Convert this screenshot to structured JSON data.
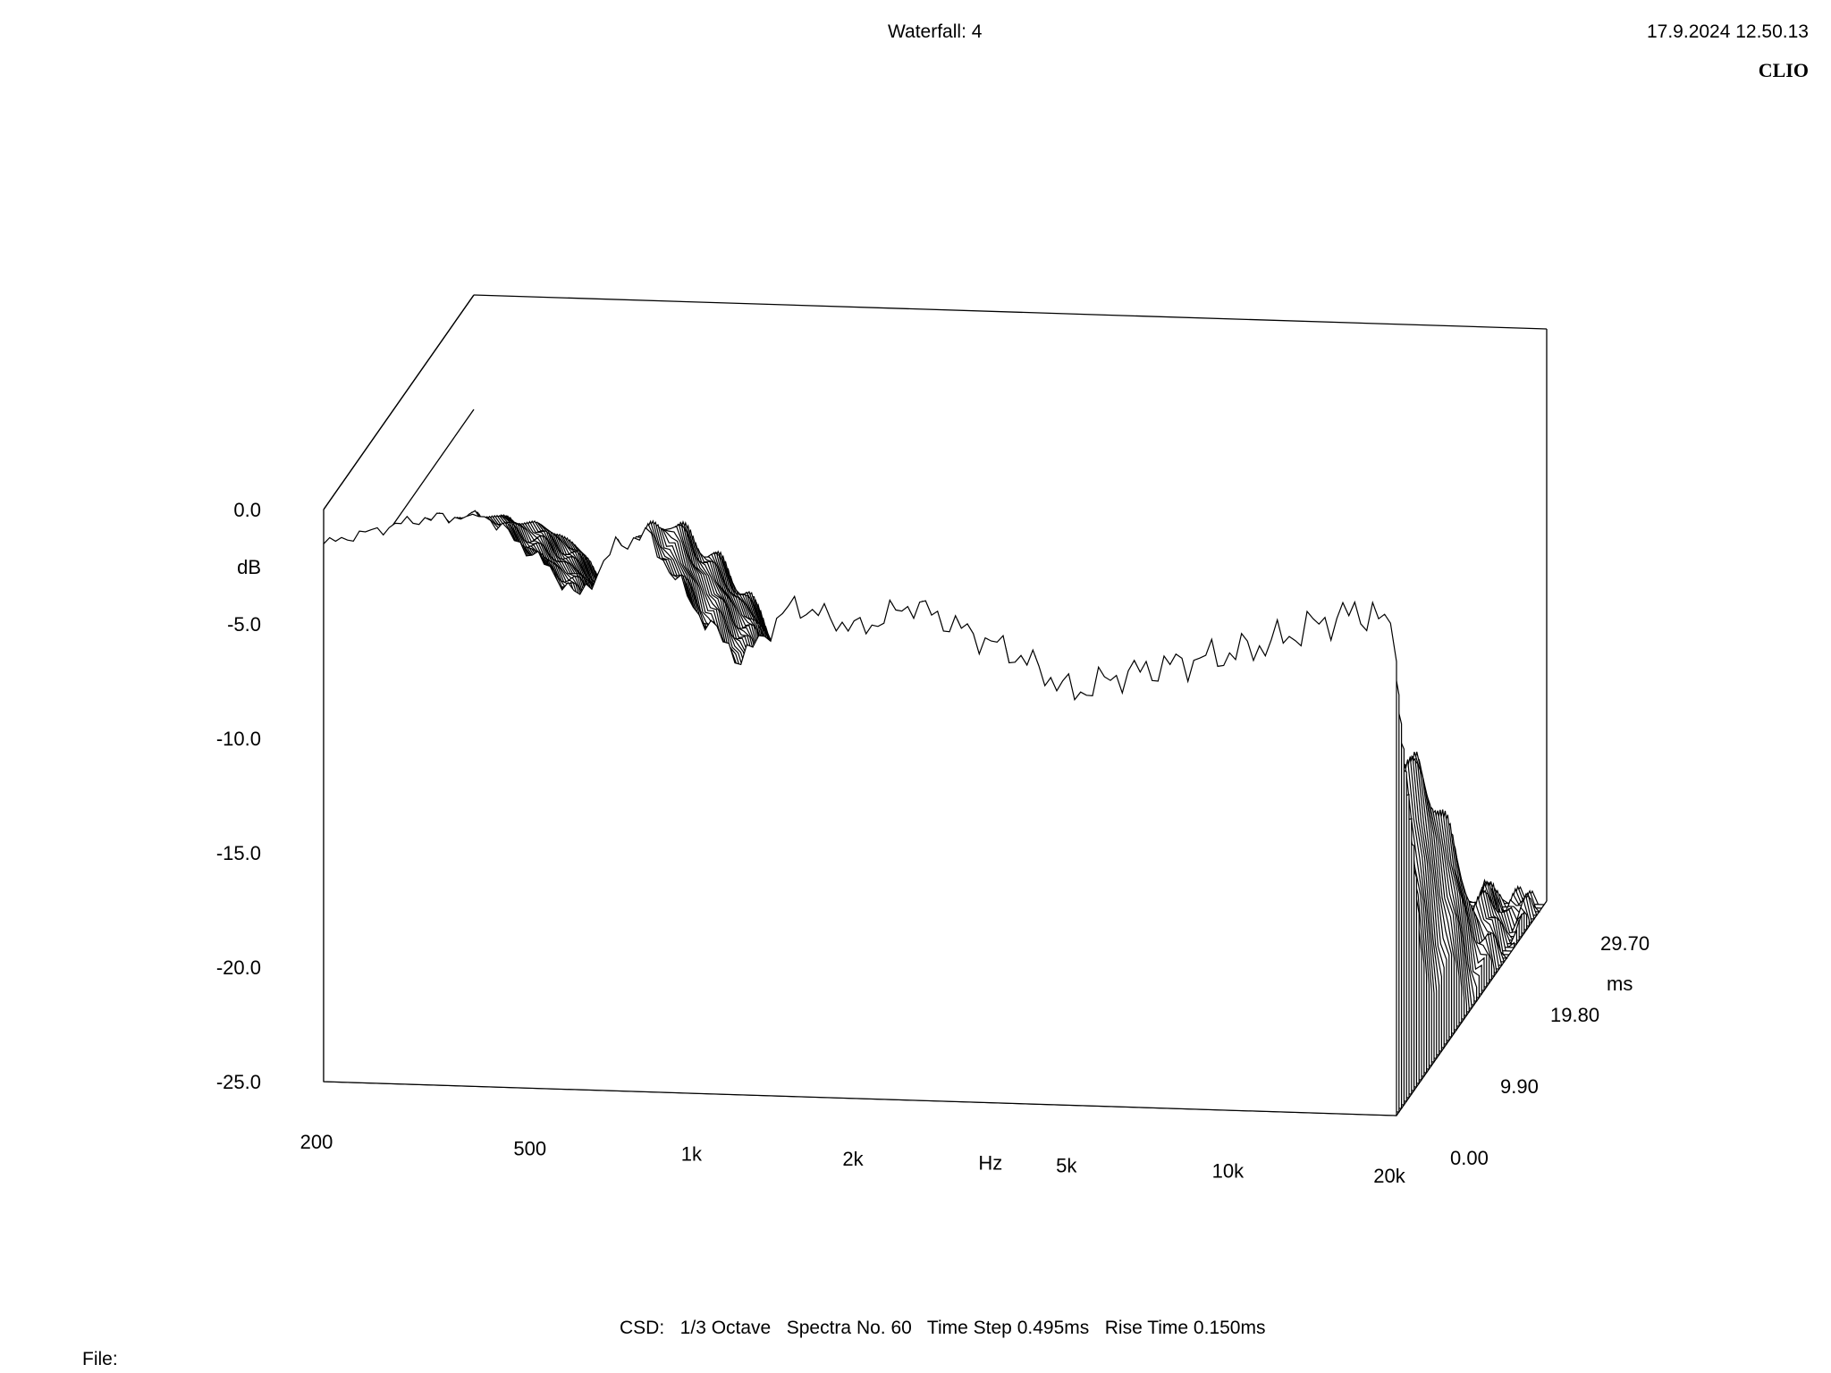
{
  "header": {
    "title": "Waterfall: 4",
    "datetime": "17.9.2024 12.50.13",
    "brand": "CLIO"
  },
  "footer": {
    "settings": "CSD:   1/3 Octave   Spectra No. 60   Time Step 0.495ms   Rise Time 0.150ms",
    "file_label": "File:"
  },
  "chart_data": {
    "type": "waterfall",
    "title": "Waterfall: 4",
    "method": "CSD",
    "smoothing": "1/3 Octave",
    "spectra_count": 60,
    "time_step_ms": 0.495,
    "rise_time_ms": 0.15,
    "ylabel": "dB",
    "xlabel": "Hz",
    "zlabel": "ms",
    "ylim": [
      -25,
      0
    ],
    "xlim": [
      200,
      20000
    ],
    "x_scale": "log",
    "zlim": [
      0,
      29.7
    ],
    "y_ticks": [
      "0.0",
      "-5.0",
      "-10.0",
      "-15.0",
      "-20.0",
      "-25.0"
    ],
    "x_ticks": [
      "200",
      "500",
      "1k",
      "2k",
      "5k",
      "10k",
      "20k"
    ],
    "z_ticks": [
      "0.00",
      "9.90",
      "19.80",
      "29.70"
    ],
    "series": [
      {
        "time_ms": 0.0,
        "freq": [
          200,
          300,
          400,
          500,
          600,
          700,
          800,
          1000,
          1200,
          1500,
          2000,
          2500,
          3000,
          4000,
          5000,
          6000,
          8000,
          10000,
          12000,
          15000,
          18000,
          20000
        ],
        "db": [
          -1.5,
          -0.3,
          0.0,
          -1.8,
          -3.5,
          -1.2,
          -0.6,
          -4.0,
          -6.0,
          -3.5,
          -4.5,
          -3.3,
          -4.2,
          -5.5,
          -7.0,
          -6.2,
          -5.5,
          -5.0,
          -4.4,
          -3.4,
          -3.0,
          -4.2
        ]
      },
      {
        "time_ms": 4.95,
        "freq": [
          200,
          300,
          400,
          500,
          600,
          700,
          800,
          1000,
          1200,
          1500,
          2000,
          2500,
          3000,
          4000,
          5000,
          6000,
          8000,
          10000,
          12000,
          15000,
          18000,
          20000
        ],
        "db": [
          -6.5,
          -2.5,
          -1.8,
          -4.5,
          -8.5,
          -3.5,
          -1.5,
          -8.0,
          -9.5,
          -9.5,
          -8.0,
          -7.0,
          -8.5,
          -10.0,
          -13.0,
          -14.0,
          -12.5,
          -12.5,
          -13.5,
          -13.0,
          -11.0,
          -20.0
        ]
      },
      {
        "time_ms": 9.9,
        "freq": [
          200,
          300,
          400,
          500,
          600,
          700,
          800,
          1000,
          1200,
          1500,
          2000,
          2500,
          3000,
          4000,
          5000,
          6000,
          8000,
          10000,
          12000,
          15000,
          18000,
          20000
        ],
        "db": [
          -9.0,
          -4.5,
          -3.5,
          -6.5,
          -10.5,
          -5.5,
          -4.0,
          -9.5,
          -12.0,
          -11.5,
          -10.5,
          -9.5,
          -11.0,
          -13.0,
          -16.0,
          -16.5,
          -15.5,
          -15.0,
          -15.5,
          -15.0,
          -13.0,
          -22.0
        ]
      },
      {
        "time_ms": 14.85,
        "freq": [
          200,
          300,
          400,
          500,
          600,
          700,
          800,
          1000,
          1200,
          1500,
          2000,
          2500,
          3000,
          4000,
          5000,
          6000,
          8000,
          10000,
          12000,
          15000,
          18000,
          20000
        ],
        "db": [
          -12.0,
          -7.0,
          -5.5,
          -9.0,
          -13.0,
          -7.5,
          -6.5,
          -11.5,
          -14.5,
          -14.5,
          -13.0,
          -13.5,
          -15.0,
          -16.5,
          -19.0,
          -19.5,
          -19.0,
          -18.5,
          -19.0,
          -18.5,
          -17.0,
          -24.0
        ]
      },
      {
        "time_ms": 19.8,
        "freq": [
          200,
          300,
          400,
          500,
          600,
          700,
          800,
          1000,
          1200,
          1500,
          2000,
          2500,
          3000,
          4000,
          5000,
          6000,
          8000,
          10000,
          12000,
          15000,
          18000,
          20000
        ],
        "db": [
          -15.0,
          -9.5,
          -8.0,
          -11.5,
          -15.5,
          -10.0,
          -9.5,
          -14.0,
          -17.5,
          -17.0,
          -16.0,
          -17.0,
          -18.5,
          -20.0,
          -22.0,
          -22.5,
          -22.5,
          -22.5,
          -23.0,
          -23.0,
          -22.0,
          -25.0
        ]
      },
      {
        "time_ms": 29.7,
        "freq": [
          200,
          300,
          400,
          500,
          600,
          700,
          800,
          1000,
          1200,
          1500,
          2000,
          2500,
          3000,
          4000,
          5000,
          6000,
          8000,
          10000,
          12000,
          15000,
          18000,
          20000
        ],
        "db": [
          -19.5,
          -16.0,
          -14.5,
          -17.5,
          -21.0,
          -17.0,
          -16.0,
          -20.5,
          -23.0,
          -22.5,
          -22.5,
          -23.5,
          -24.5,
          -25.0,
          -25.0,
          -25.0,
          -25.0,
          -25.0,
          -25.0,
          -25.0,
          -25.0,
          -25.0
        ]
      }
    ]
  }
}
